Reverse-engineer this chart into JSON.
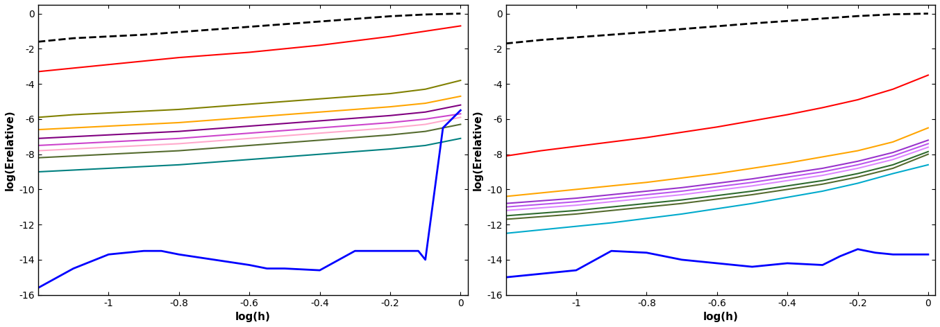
{
  "xlim": [
    -1.2,
    0.02
  ],
  "ylim": [
    -16,
    0.5
  ],
  "xlabel": "log(h)",
  "ylabel": "log(Erelative)",
  "xticks": [
    -1.0,
    -0.8,
    -0.6,
    -0.4,
    -0.2,
    0.0
  ],
  "xtick_labels": [
    "-1",
    "-0.8",
    "-0.6",
    "-0.4",
    "-0.2",
    "0"
  ],
  "yticks": [
    0,
    -2,
    -4,
    -6,
    -8,
    -10,
    -12,
    -14,
    -16
  ],
  "ytick_labels": [
    "0",
    "-2",
    "-4",
    "-6",
    "-8",
    "-10",
    "-12",
    "-14",
    "-16"
  ],
  "left_plot": {
    "dashed_black": {
      "x": [
        -1.2,
        -1.1,
        -1.0,
        -0.9,
        -0.8,
        -0.7,
        -0.6,
        -0.5,
        -0.4,
        -0.3,
        -0.2,
        -0.1,
        0.0
      ],
      "y": [
        -1.6,
        -1.4,
        -1.3,
        -1.2,
        -1.05,
        -0.9,
        -0.75,
        -0.6,
        -0.45,
        -0.3,
        -0.15,
        -0.05,
        0.0
      ]
    },
    "red": {
      "x": [
        -1.2,
        -1.1,
        -1.0,
        -0.9,
        -0.8,
        -0.7,
        -0.6,
        -0.5,
        -0.4,
        -0.3,
        -0.2,
        -0.1,
        0.0
      ],
      "y": [
        -3.3,
        -3.1,
        -2.9,
        -2.7,
        -2.5,
        -2.35,
        -2.2,
        -2.0,
        -1.8,
        -1.55,
        -1.3,
        -1.0,
        -0.7
      ]
    },
    "dark_yellow": {
      "x": [
        -1.2,
        -1.1,
        -1.0,
        -0.9,
        -0.8,
        -0.7,
        -0.6,
        -0.5,
        -0.4,
        -0.3,
        -0.2,
        -0.1,
        0.0
      ],
      "y": [
        -5.9,
        -5.75,
        -5.65,
        -5.55,
        -5.45,
        -5.3,
        -5.15,
        -5.0,
        -4.85,
        -4.7,
        -4.55,
        -4.3,
        -3.8
      ]
    },
    "orange": {
      "x": [
        -1.2,
        -1.1,
        -1.0,
        -0.9,
        -0.8,
        -0.7,
        -0.6,
        -0.5,
        -0.4,
        -0.3,
        -0.2,
        -0.1,
        0.0
      ],
      "y": [
        -6.6,
        -6.5,
        -6.4,
        -6.3,
        -6.2,
        -6.05,
        -5.9,
        -5.75,
        -5.6,
        -5.45,
        -5.3,
        -5.1,
        -4.7
      ]
    },
    "purple": {
      "x": [
        -1.2,
        -1.1,
        -1.0,
        -0.9,
        -0.8,
        -0.7,
        -0.6,
        -0.5,
        -0.4,
        -0.3,
        -0.2,
        -0.1,
        0.0
      ],
      "y": [
        -7.1,
        -7.0,
        -6.9,
        -6.8,
        -6.7,
        -6.55,
        -6.4,
        -6.25,
        -6.1,
        -5.95,
        -5.8,
        -5.6,
        -5.2
      ]
    },
    "pink": {
      "x": [
        -1.2,
        -1.1,
        -1.0,
        -0.9,
        -0.8,
        -0.7,
        -0.6,
        -0.5,
        -0.4,
        -0.3,
        -0.2,
        -0.1,
        0.0
      ],
      "y": [
        -7.5,
        -7.4,
        -7.3,
        -7.2,
        -7.1,
        -6.95,
        -6.8,
        -6.65,
        -6.5,
        -6.35,
        -6.2,
        -6.0,
        -5.7
      ]
    },
    "light_pink": {
      "x": [
        -1.2,
        -1.1,
        -1.0,
        -0.9,
        -0.8,
        -0.7,
        -0.6,
        -0.5,
        -0.4,
        -0.3,
        -0.2,
        -0.1,
        0.0
      ],
      "y": [
        -7.8,
        -7.7,
        -7.6,
        -7.5,
        -7.4,
        -7.25,
        -7.1,
        -6.95,
        -6.8,
        -6.65,
        -6.5,
        -6.3,
        -5.9
      ]
    },
    "dark_olive": {
      "x": [
        -1.2,
        -1.1,
        -1.0,
        -0.9,
        -0.8,
        -0.7,
        -0.6,
        -0.5,
        -0.4,
        -0.3,
        -0.2,
        -0.1,
        0.0
      ],
      "y": [
        -8.2,
        -8.1,
        -8.0,
        -7.9,
        -7.8,
        -7.65,
        -7.5,
        -7.35,
        -7.2,
        -7.05,
        -6.9,
        -6.7,
        -6.3
      ]
    },
    "teal": {
      "x": [
        -1.2,
        -1.1,
        -1.0,
        -0.9,
        -0.8,
        -0.7,
        -0.6,
        -0.5,
        -0.4,
        -0.3,
        -0.2,
        -0.1,
        0.0
      ],
      "y": [
        -9.0,
        -8.9,
        -8.8,
        -8.7,
        -8.6,
        -8.45,
        -8.3,
        -8.15,
        -8.0,
        -7.85,
        -7.7,
        -7.5,
        -7.1
      ]
    },
    "blue": {
      "x": [
        -1.2,
        -1.1,
        -1.0,
        -0.9,
        -0.85,
        -0.8,
        -0.7,
        -0.6,
        -0.55,
        -0.5,
        -0.4,
        -0.3,
        -0.25,
        -0.2,
        -0.15,
        -0.12,
        -0.1,
        -0.05,
        0.0
      ],
      "y": [
        -15.6,
        -14.5,
        -13.7,
        -13.5,
        -13.5,
        -13.7,
        -14.0,
        -14.3,
        -14.5,
        -14.5,
        -14.6,
        -13.5,
        -13.5,
        -13.5,
        -13.5,
        -13.5,
        -14.0,
        -6.5,
        -5.5
      ]
    }
  },
  "right_plot": {
    "dashed_black": {
      "x": [
        -1.2,
        -1.1,
        -1.0,
        -0.9,
        -0.8,
        -0.7,
        -0.6,
        -0.5,
        -0.4,
        -0.3,
        -0.2,
        -0.1,
        0.0
      ],
      "y": [
        -1.7,
        -1.5,
        -1.35,
        -1.2,
        -1.05,
        -0.88,
        -0.72,
        -0.56,
        -0.42,
        -0.28,
        -0.14,
        -0.04,
        0.0
      ]
    },
    "red": {
      "x": [
        -1.2,
        -1.1,
        -1.0,
        -0.9,
        -0.8,
        -0.7,
        -0.6,
        -0.5,
        -0.4,
        -0.3,
        -0.2,
        -0.1,
        0.0
      ],
      "y": [
        -8.1,
        -7.8,
        -7.55,
        -7.3,
        -7.05,
        -6.75,
        -6.45,
        -6.1,
        -5.75,
        -5.35,
        -4.9,
        -4.3,
        -3.5
      ]
    },
    "orange": {
      "x": [
        -1.2,
        -1.1,
        -1.0,
        -0.9,
        -0.8,
        -0.7,
        -0.6,
        -0.5,
        -0.4,
        -0.3,
        -0.2,
        -0.1,
        0.0
      ],
      "y": [
        -10.4,
        -10.2,
        -10.0,
        -9.8,
        -9.6,
        -9.35,
        -9.1,
        -8.8,
        -8.5,
        -8.15,
        -7.8,
        -7.3,
        -6.5
      ]
    },
    "purple1": {
      "x": [
        -1.2,
        -1.1,
        -1.0,
        -0.9,
        -0.8,
        -0.7,
        -0.6,
        -0.5,
        -0.4,
        -0.3,
        -0.2,
        -0.1,
        0.0
      ],
      "y": [
        -10.8,
        -10.65,
        -10.5,
        -10.3,
        -10.1,
        -9.9,
        -9.65,
        -9.4,
        -9.1,
        -8.8,
        -8.4,
        -7.9,
        -7.2
      ]
    },
    "purple2": {
      "x": [
        -1.2,
        -1.1,
        -1.0,
        -0.9,
        -0.8,
        -0.7,
        -0.6,
        -0.5,
        -0.4,
        -0.3,
        -0.2,
        -0.1,
        0.0
      ],
      "y": [
        -11.0,
        -10.85,
        -10.7,
        -10.5,
        -10.3,
        -10.1,
        -9.85,
        -9.6,
        -9.3,
        -9.0,
        -8.6,
        -8.1,
        -7.4
      ]
    },
    "purple3": {
      "x": [
        -1.2,
        -1.1,
        -1.0,
        -0.9,
        -0.8,
        -0.7,
        -0.6,
        -0.5,
        -0.4,
        -0.3,
        -0.2,
        -0.1,
        0.0
      ],
      "y": [
        -11.2,
        -11.05,
        -10.9,
        -10.7,
        -10.5,
        -10.3,
        -10.05,
        -9.8,
        -9.5,
        -9.2,
        -8.8,
        -8.3,
        -7.6
      ]
    },
    "dark_green": {
      "x": [
        -1.2,
        -1.1,
        -1.0,
        -0.9,
        -0.8,
        -0.7,
        -0.6,
        -0.5,
        -0.4,
        -0.3,
        -0.2,
        -0.1,
        0.0
      ],
      "y": [
        -11.5,
        -11.35,
        -11.2,
        -11.0,
        -10.8,
        -10.6,
        -10.35,
        -10.1,
        -9.8,
        -9.5,
        -9.1,
        -8.6,
        -7.85
      ]
    },
    "dark_olive": {
      "x": [
        -1.2,
        -1.1,
        -1.0,
        -0.9,
        -0.8,
        -0.7,
        -0.6,
        -0.5,
        -0.4,
        -0.3,
        -0.2,
        -0.1,
        0.0
      ],
      "y": [
        -11.7,
        -11.55,
        -11.4,
        -11.2,
        -11.0,
        -10.8,
        -10.55,
        -10.3,
        -10.0,
        -9.7,
        -9.3,
        -8.8,
        -8.0
      ]
    },
    "cyan": {
      "x": [
        -1.2,
        -1.1,
        -1.0,
        -0.9,
        -0.8,
        -0.7,
        -0.6,
        -0.5,
        -0.4,
        -0.3,
        -0.2,
        -0.1,
        0.0
      ],
      "y": [
        -12.5,
        -12.3,
        -12.1,
        -11.9,
        -11.65,
        -11.4,
        -11.1,
        -10.8,
        -10.45,
        -10.1,
        -9.65,
        -9.1,
        -8.6
      ]
    },
    "blue": {
      "x": [
        -1.2,
        -1.0,
        -0.9,
        -0.8,
        -0.7,
        -0.6,
        -0.5,
        -0.4,
        -0.3,
        -0.25,
        -0.2,
        -0.15,
        -0.1,
        0.0
      ],
      "y": [
        -15.0,
        -14.6,
        -13.5,
        -13.6,
        -14.0,
        -14.2,
        -14.4,
        -14.2,
        -14.3,
        -13.8,
        -13.4,
        -13.6,
        -13.7,
        -13.7
      ]
    }
  },
  "colors": {
    "dashed_black": "#000000",
    "red": "#ff0000",
    "dark_yellow": "#808000",
    "orange": "#ffa500",
    "purple": "#800080",
    "pink": "#cc44cc",
    "light_pink": "#ffaacc",
    "dark_olive": "#556b2f",
    "teal": "#008080",
    "blue": "#0000ff",
    "purple1": "#9933cc",
    "purple2": "#bb55ee",
    "purple3": "#dd88ff",
    "dark_green": "#2e6b2e",
    "cyan": "#00aacc"
  }
}
